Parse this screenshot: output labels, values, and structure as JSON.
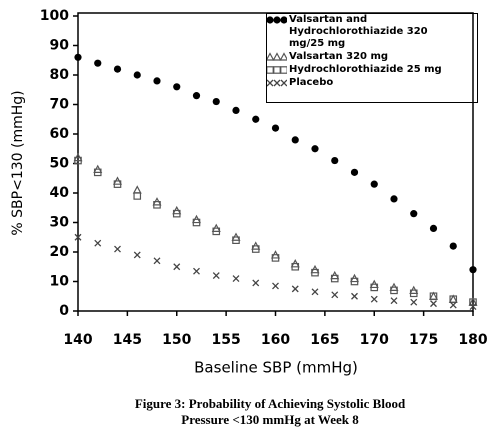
{
  "chart_data": {
    "type": "scatter",
    "caption": "Figure 3: Probability of Achieving Systolic Blood Pressure <130 mmHg at Week 8",
    "xlabel": "Baseline SBP (mmHg)",
    "ylabel": "% SBP<130 (mmHg)",
    "x": [
      140,
      142,
      144,
      146,
      148,
      150,
      152,
      154,
      156,
      158,
      160,
      162,
      164,
      166,
      168,
      170,
      172,
      174,
      176,
      178,
      180
    ],
    "xlim": [
      140,
      180
    ],
    "xticks": [
      140,
      145,
      150,
      155,
      160,
      165,
      170,
      175,
      180
    ],
    "ylim": [
      0,
      100
    ],
    "yticks": [
      0,
      10,
      20,
      30,
      40,
      50,
      60,
      70,
      80,
      90,
      100
    ],
    "series": [
      {
        "name": "Valsartan and Hydrochlorothiazide 320 mg/25 mg",
        "marker": "circle",
        "color": "#000000",
        "values": [
          86,
          84,
          82,
          80,
          78,
          76,
          73,
          71,
          68,
          65,
          62,
          58,
          55,
          51,
          47,
          43,
          38,
          33,
          28,
          22,
          14
        ]
      },
      {
        "name": "Valsartan 320 mg",
        "marker": "triangle",
        "color": "#555555",
        "values": [
          52,
          48,
          44,
          41,
          37,
          34,
          31,
          28,
          25,
          22,
          19,
          16,
          14,
          12,
          11,
          9,
          8,
          7,
          5,
          4,
          3
        ]
      },
      {
        "name": "Hydrochlorothiazide 25 mg",
        "marker": "square",
        "color": "#555555",
        "values": [
          51,
          47,
          43,
          39,
          36,
          33,
          30,
          27,
          24,
          21,
          18,
          15,
          13,
          11,
          10,
          8,
          7,
          6,
          5,
          4,
          3
        ]
      },
      {
        "name": "Placebo",
        "marker": "x",
        "color": "#444444",
        "values": [
          25,
          23,
          21,
          19,
          17,
          15,
          13.5,
          12,
          11,
          9.5,
          8.5,
          7.5,
          6.5,
          5.5,
          5,
          4,
          3.5,
          3,
          2.5,
          2,
          1.5
        ]
      }
    ]
  }
}
